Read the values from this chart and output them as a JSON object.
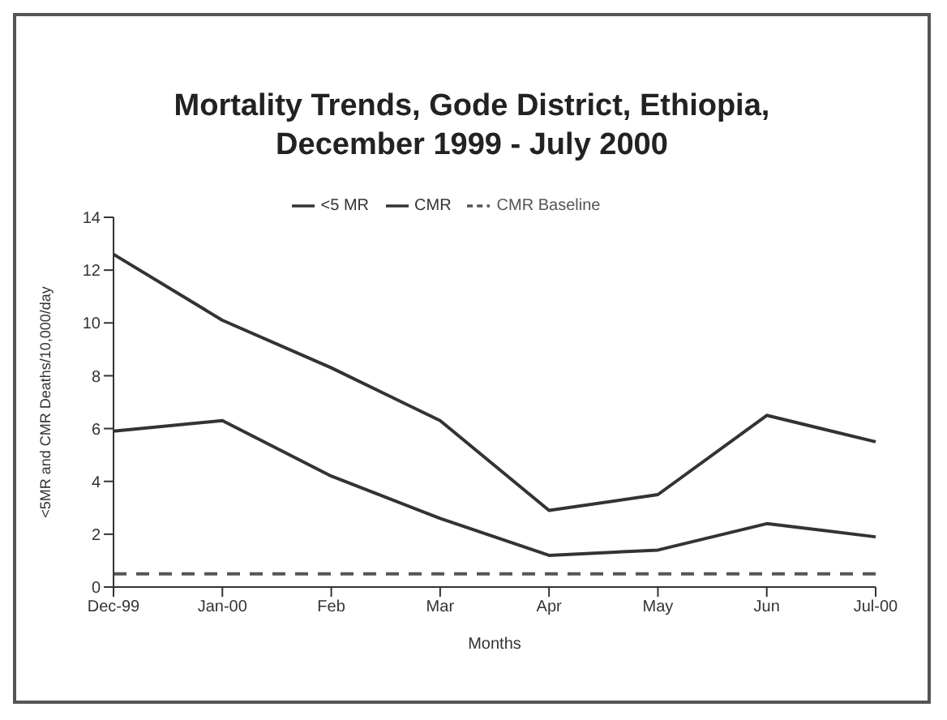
{
  "chart_data": {
    "type": "line",
    "title": "Mortality Trends, Gode District, Ethiopia, December 1999 - July 2000",
    "xlabel": "Months",
    "ylabel": "<5MR and CMR Deaths/10,000/day",
    "categories": [
      "Dec-99",
      "Jan-00",
      "Feb",
      "Mar",
      "Apr",
      "May",
      "Jun",
      "Jul-00"
    ],
    "series": [
      {
        "name": "<5 MR",
        "color": "#333333",
        "values": [
          12.6,
          10.1,
          8.3,
          6.3,
          2.9,
          3.5,
          6.5,
          5.5
        ]
      },
      {
        "name": "CMR",
        "color": "#333333",
        "values": [
          5.9,
          6.3,
          4.2,
          2.6,
          1.2,
          1.4,
          2.4,
          1.9
        ]
      },
      {
        "name": "CMR Baseline",
        "color": "#555555",
        "line_style": "dashed",
        "values": [
          0.5,
          0.5,
          0.5,
          0.5,
          0.5,
          0.5,
          0.5,
          0.5
        ]
      }
    ],
    "ylim": [
      0,
      14
    ],
    "yticks": [
      0,
      2,
      4,
      6,
      8,
      10,
      12,
      14
    ],
    "legend": "top",
    "marker": "none",
    "line_style": "solid"
  }
}
